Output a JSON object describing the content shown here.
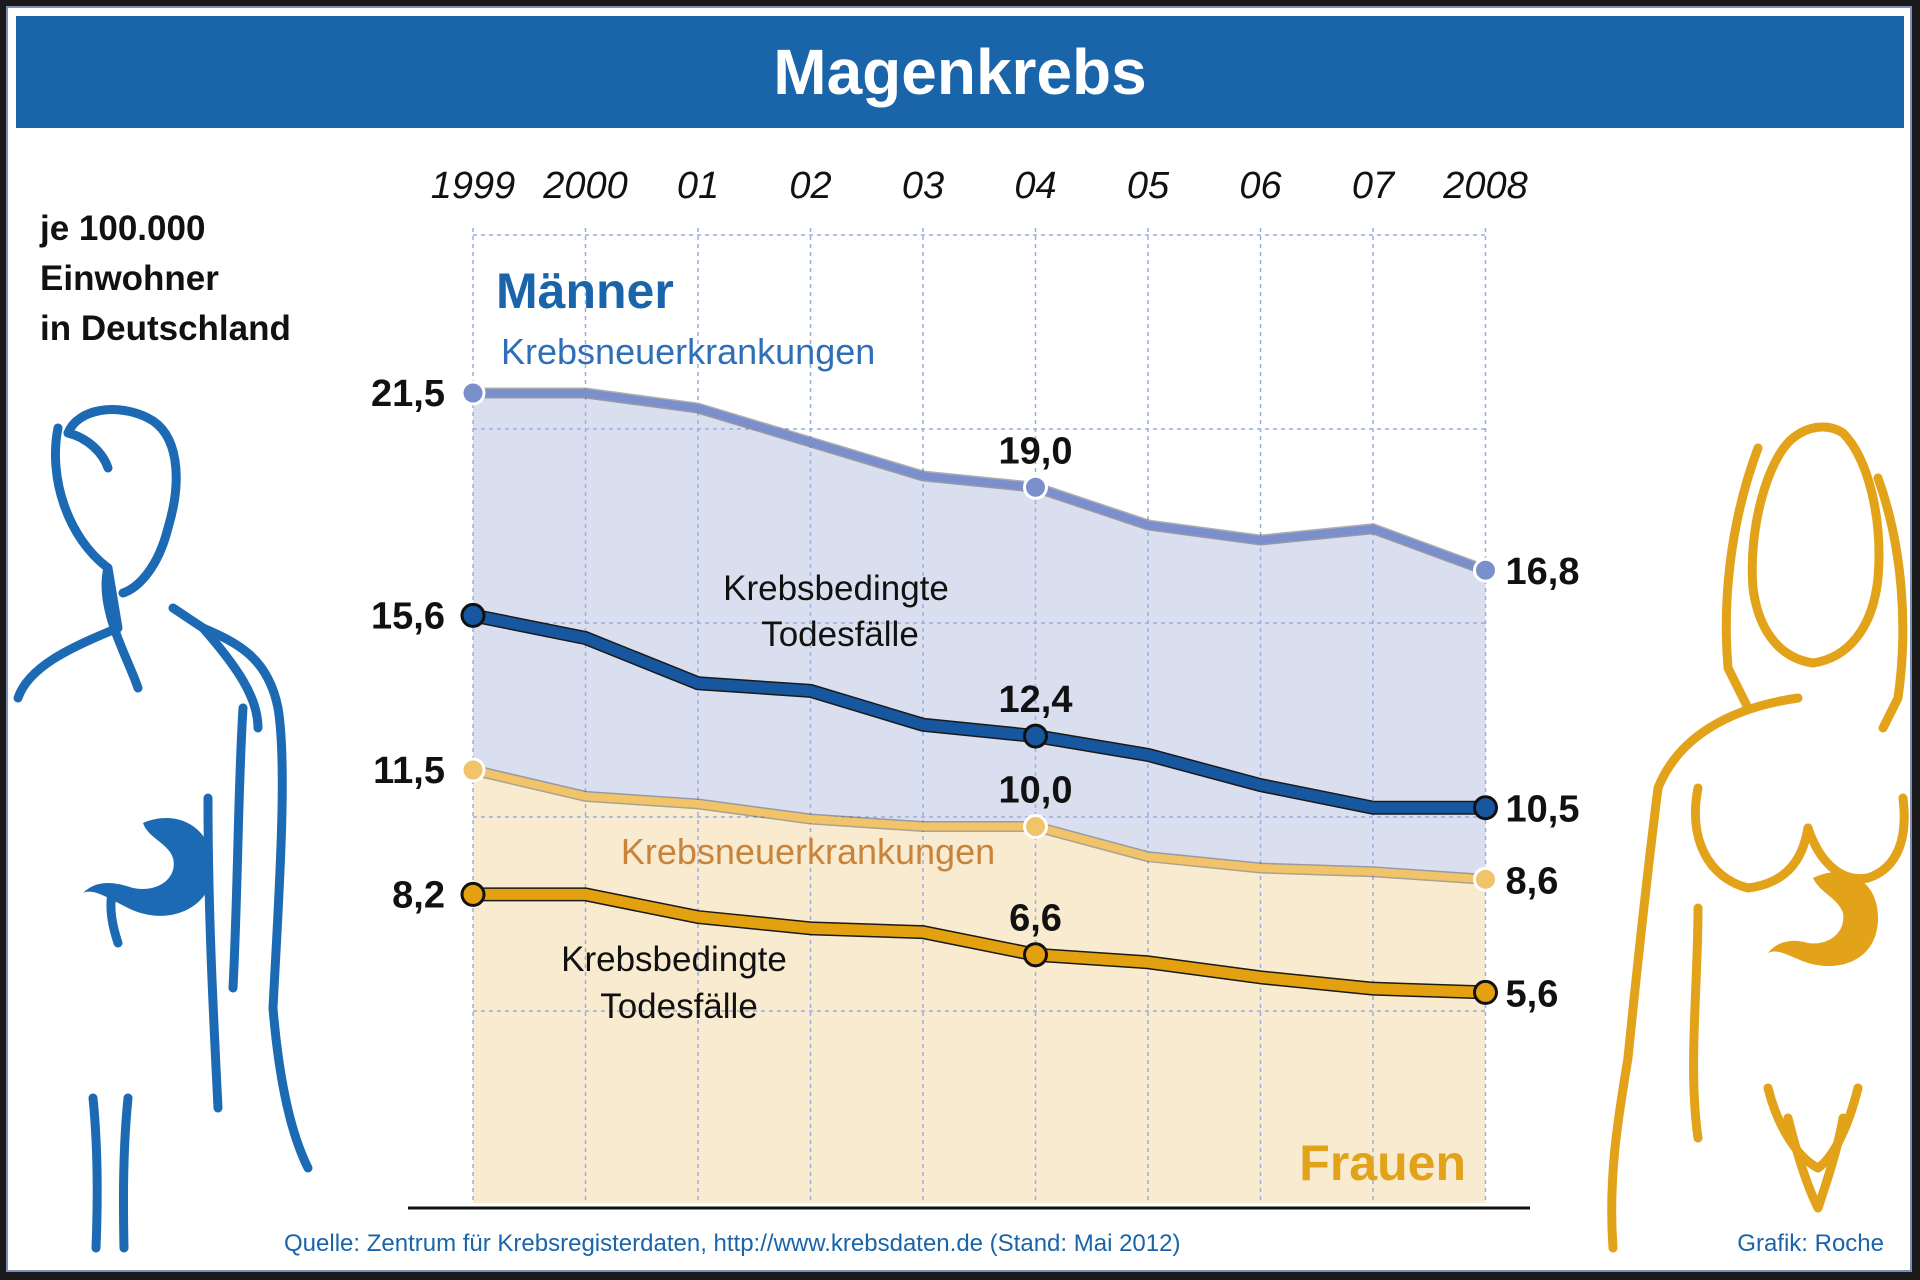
{
  "title": "Magenkrebs",
  "unit_label": [
    "je 100.000",
    "Einwohner",
    "in Deutschland"
  ],
  "source": "Quelle: Zentrum für Krebsregisterdaten, http://www.krebsdaten.de (Stand: Mai 2012)",
  "credit": "Grafik: Roche",
  "colors": {
    "header_blue": "#1a64aa",
    "men_incidence": "#7b8fcc",
    "men_death": "#1757a0",
    "women_incidence": "#f2c46a",
    "women_death": "#e4a10f",
    "men_area": "#dadff0",
    "women_area": "#f9ebd0",
    "men_figure": "#1d6ab4",
    "women_figure": "#e2a21a"
  },
  "chart_data": {
    "type": "line",
    "title": "Magenkrebs",
    "ylabel": "je 100.000 Einwohner in Deutschland",
    "x": [
      "1999",
      "2000",
      "01",
      "02",
      "03",
      "04",
      "05",
      "06",
      "07",
      "2008"
    ],
    "groups": [
      {
        "label": "Männer",
        "color": "#1a64aa"
      },
      {
        "label": "Frauen",
        "color": "#e2a21a"
      }
    ],
    "series": [
      {
        "name": "Krebsneuerkrankungen",
        "group": "Männer",
        "color": "#7b8fcc",
        "label_color": "#2f6fb8",
        "values": [
          21.5,
          21.5,
          21.1,
          20.2,
          19.3,
          19.0,
          18.0,
          17.6,
          17.9,
          16.8
        ],
        "labels": {
          "0": "21,5",
          "5": "19,0",
          "9": "16,8"
        }
      },
      {
        "name": "Krebsbedingte Todesfälle",
        "group": "Männer",
        "color": "#1757a0",
        "label_color": "#111111",
        "values": [
          15.6,
          15.0,
          13.8,
          13.6,
          12.7,
          12.4,
          11.9,
          11.1,
          10.5,
          10.5
        ],
        "labels": {
          "0": "15,6",
          "5": "12,4",
          "9": "10,5"
        }
      },
      {
        "name": "Krebsneuerkrankungen",
        "group": "Frauen",
        "color": "#f2c46a",
        "label_color": "#c8843a",
        "values": [
          11.5,
          10.8,
          10.6,
          10.2,
          10.0,
          10.0,
          9.2,
          8.9,
          8.8,
          8.6
        ],
        "labels": {
          "0": "11,5",
          "5": "10,0",
          "9": "8,6"
        }
      },
      {
        "name": "Krebsbedingte Todesfälle",
        "group": "Frauen",
        "color": "#e4a10f",
        "label_color": "#111111",
        "values": [
          8.2,
          8.2,
          7.6,
          7.3,
          7.2,
          6.6,
          6.4,
          6.0,
          5.7,
          5.6
        ],
        "labels": {
          "0": "8,2",
          "5": "6,6",
          "9": "5,6"
        }
      }
    ],
    "ylim": [
      0,
      21.5
    ],
    "grid": true
  }
}
